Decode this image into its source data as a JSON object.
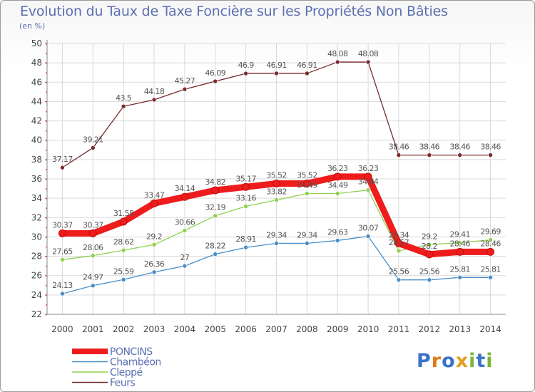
{
  "title": "Evolution du Taux de Taxe Foncière sur les Propriétés Non Bâties",
  "unit_label": "(en %)",
  "logo": {
    "text": "Proxiti",
    "colors": [
      "#3a73c9",
      "#e07b18",
      "#3a73c9",
      "#e0a020",
      "#7ab43a",
      "#3a73c9",
      "#7ab43a"
    ]
  },
  "chart_data": {
    "type": "line",
    "x": [
      "2000",
      "2001",
      "2002",
      "2003",
      "2004",
      "2005",
      "2006",
      "2007",
      "2008",
      "2009",
      "2010",
      "2011",
      "2012",
      "2013",
      "2014"
    ],
    "ylim": [
      22,
      50
    ],
    "yticks": [
      22,
      24,
      26,
      28,
      30,
      32,
      34,
      36,
      38,
      40,
      42,
      44,
      46,
      48,
      50
    ],
    "grid": true,
    "legend_position": "bottom-left",
    "series": [
      {
        "name": "Feurs",
        "color": "#7a2b2b",
        "values": [
          37.17,
          39.21,
          43.5,
          44.18,
          45.27,
          46.09,
          46.9,
          46.91,
          46.91,
          48.08,
          48.08,
          38.46,
          38.46,
          38.46,
          38.46
        ],
        "labels": [
          "37.17",
          "39.21",
          "43.5",
          "44.18",
          "45.27",
          "46.09",
          "46.9",
          "46.91",
          "46.91",
          "48.08",
          "48.08",
          "38.46",
          "38.46",
          "38.46",
          "38.46"
        ]
      },
      {
        "name": "Cleppé",
        "color": "#8fd14f",
        "values": [
          27.65,
          28.06,
          28.62,
          29.2,
          30.66,
          32.19,
          33.16,
          33.82,
          34.49,
          34.49,
          34.84,
          28.57,
          29.2,
          29.41,
          29.69
        ],
        "labels": [
          "27.65",
          "28.06",
          "28.62",
          "29.2",
          "30.66",
          "32.19",
          "33.16",
          "33.82",
          "34.49",
          "34.49",
          "34.84",
          "28.57",
          "29.2",
          "29.41",
          "29.69"
        ]
      },
      {
        "name": "Chambéon",
        "color": "#4a8ec8",
        "values": [
          24.13,
          24.97,
          25.59,
          26.36,
          27,
          28.22,
          28.91,
          29.34,
          29.34,
          29.63,
          30.07,
          25.56,
          25.56,
          25.81,
          25.81
        ],
        "labels": [
          "24.13",
          "24.97",
          "25.59",
          "26.36",
          "27",
          "28.22",
          "28.91",
          "29.34",
          "29.34",
          "29.63",
          "30.07",
          "25.56",
          "25.56",
          "25.81",
          "25.81"
        ]
      },
      {
        "name": "PONCINS",
        "color": "#ee1c1c",
        "values": [
          30.37,
          30.37,
          31.58,
          33.47,
          34.14,
          34.82,
          35.17,
          35.52,
          35.52,
          36.23,
          36.23,
          29.34,
          28.2,
          28.46,
          28.46
        ],
        "labels": [
          "30.37",
          "30.37",
          "31.58",
          "33.47",
          "34.14",
          "34.82",
          "35.17",
          "35.52",
          "35.52",
          "36.23",
          "36.23",
          "29.34",
          "28.2",
          "28.46",
          "28.46"
        ]
      }
    ]
  }
}
